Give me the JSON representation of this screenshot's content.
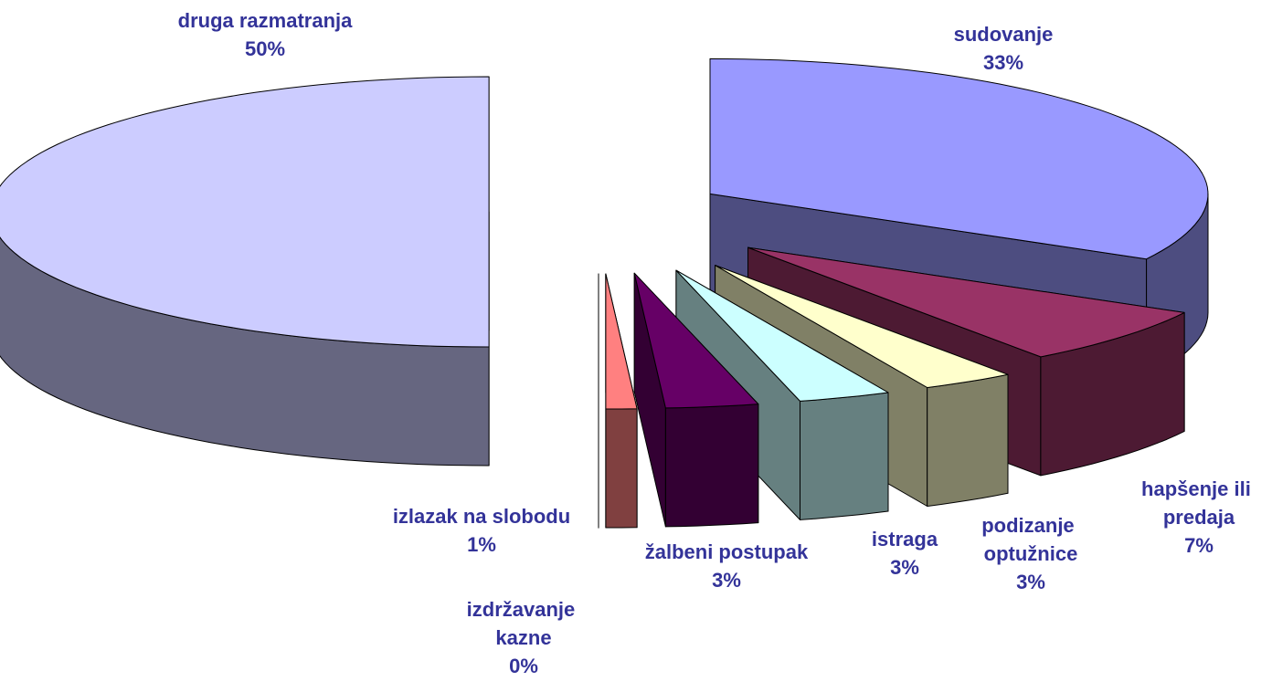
{
  "chart_data": {
    "type": "pie3d",
    "categories": [
      "sudovanje",
      "hapšenje ili predaja",
      "podizanje optužnice",
      "istraga",
      "žalbeni postupak",
      "izlazak na slobodu",
      "izdržavanje kazne",
      "druga razmatranja"
    ],
    "values": [
      33,
      7,
      3,
      3,
      3,
      1,
      0,
      50
    ],
    "value_labels": [
      "33%",
      "7%",
      "3%",
      "3%",
      "3%",
      "1%",
      "0%",
      "50%"
    ],
    "colors": [
      "#9999ff",
      "#993366",
      "#ffffcc",
      "#ccffff",
      "#660066",
      "#ff8080",
      "#0066cc",
      "#ccccff"
    ]
  }
}
